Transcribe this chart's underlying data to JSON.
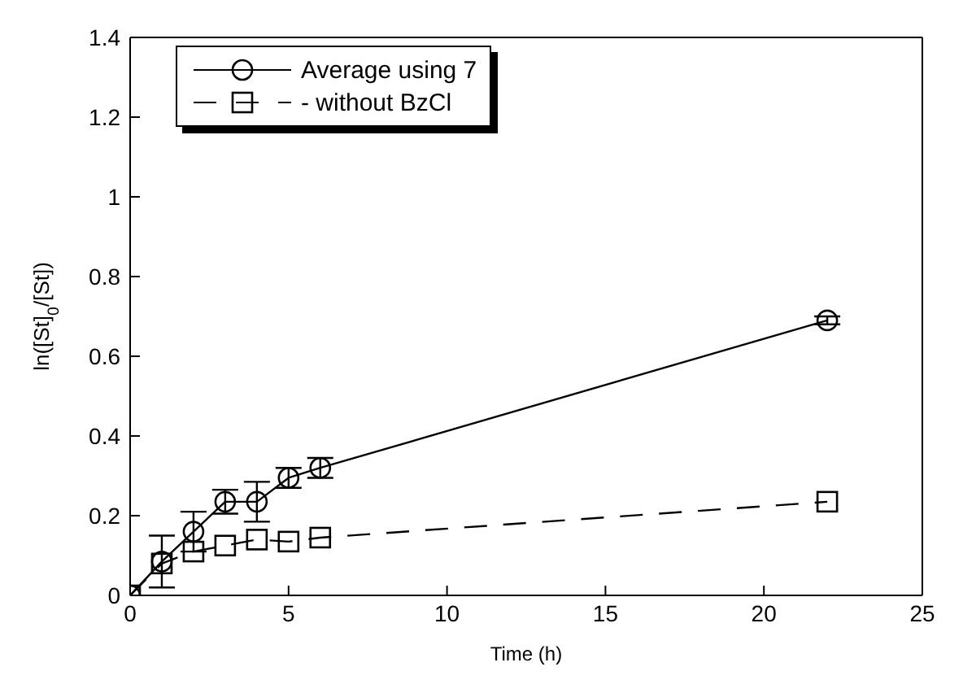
{
  "chart_data": {
    "type": "line",
    "xlabel": "Time (h)",
    "ylabel": "ln([St]$_{0}$/[St])",
    "x": [
      0,
      1,
      2,
      3,
      4,
      5,
      6,
      22
    ],
    "series": [
      {
        "name": "Average using 7",
        "color": "#000000",
        "marker": "circle",
        "line_style": "solid",
        "values": [
          0,
          0.085,
          0.16,
          0.235,
          0.235,
          0.295,
          0.32,
          0.69
        ],
        "errors": [
          null,
          0.065,
          0.05,
          0.03,
          0.05,
          0.025,
          0.025,
          0.01
        ]
      },
      {
        "name": "- without BzCl",
        "color": "#000000",
        "marker": "square",
        "line_style": "dashed",
        "values": [
          0,
          0.08,
          0.11,
          0.125,
          0.14,
          0.135,
          0.145,
          0.235
        ]
      }
    ],
    "xlim": [
      0,
      25
    ],
    "xticks": [
      0,
      5,
      10,
      15,
      20,
      25
    ],
    "ylim": [
      0,
      1.4
    ],
    "yticks": [
      0,
      0.2,
      0.4,
      0.6,
      0.8,
      1,
      1.2,
      1.4
    ],
    "grid": false,
    "legend": "top left"
  }
}
